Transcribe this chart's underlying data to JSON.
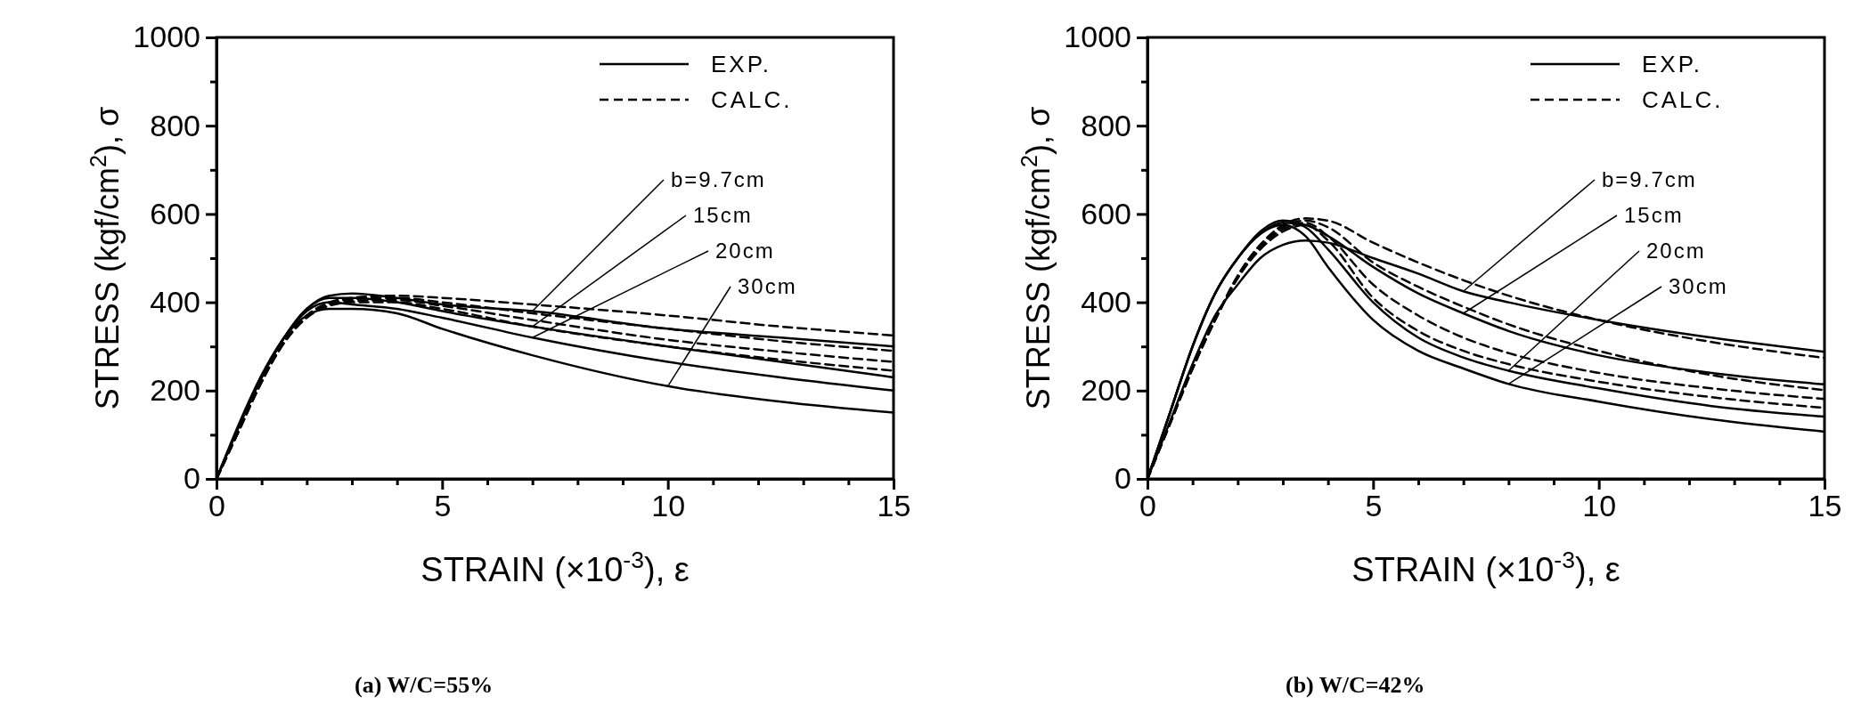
{
  "chart_data": [
    {
      "type": "line",
      "title": "(a)  W/C=55%",
      "xlabel": "STRAIN (×10$^{-3}$), ε",
      "ylabel": "STRESS (kgf/cm$^{2}$), σ",
      "xlim": [
        0,
        15
      ],
      "ylim": [
        0,
        1000
      ],
      "xticks": [
        0,
        {
          "value": 1,
          "label": null
        },
        {
          "value": 2,
          "label": null
        },
        {
          "value": 3,
          "label": null
        },
        {
          "value": 4,
          "label": null
        },
        5,
        {
          "value": 6,
          "label": null
        },
        {
          "value": 7,
          "label": null
        },
        {
          "value": 8,
          "label": null
        },
        {
          "value": 9,
          "label": null
        },
        10,
        {
          "value": 11,
          "label": null
        },
        {
          "value": 12,
          "label": null
        },
        {
          "value": 13,
          "label": null
        },
        {
          "value": 14,
          "label": null
        },
        15
      ],
      "yticks": [
        0,
        {
          "value": 100,
          "label": null
        },
        200,
        {
          "value": 300,
          "label": null
        },
        400,
        {
          "value": 500,
          "label": null
        },
        600,
        {
          "value": 700,
          "label": null
        },
        800,
        {
          "value": 900,
          "label": null
        },
        1000
      ],
      "legend": "top right",
      "series": [
        {
          "name": "EXP.",
          "color": "#000000",
          "line_style": "solid",
          "x": [
            0,
            0.5,
            1,
            1.5,
            2,
            2.5,
            3,
            4,
            5,
            7,
            10,
            12.5,
            15
          ],
          "values": [
            0,
            120,
            230,
            320,
            385,
            415,
            420,
            410,
            395,
            380,
            340,
            320,
            300
          ]
        },
        {
          "color": "#000000",
          "line_style": "solid",
          "x": [
            0,
            0.5,
            1,
            1.5,
            2,
            2.5,
            3,
            4,
            5,
            7,
            10,
            12.5,
            15
          ],
          "values": [
            0,
            120,
            230,
            320,
            385,
            410,
            410,
            400,
            380,
            345,
            300,
            265,
            230
          ]
        },
        {
          "color": "#000000",
          "line_style": "solid",
          "x": [
            0,
            0.5,
            1,
            1.5,
            2,
            2.5,
            3,
            4,
            5,
            7,
            10,
            12.5,
            15
          ],
          "values": [
            0,
            120,
            230,
            320,
            380,
            400,
            395,
            385,
            365,
            320,
            265,
            230,
            200
          ]
        },
        {
          "color": "#000000",
          "line_style": "solid",
          "x": [
            0,
            0.5,
            1,
            1.5,
            2,
            2.5,
            3,
            4,
            5,
            7,
            10,
            12.5,
            15
          ],
          "values": [
            0,
            125,
            235,
            320,
            370,
            385,
            385,
            375,
            340,
            280,
            210,
            175,
            150
          ]
        },
        {
          "name": "CALC.",
          "color": "#000000",
          "line_style": "dashed",
          "x": [
            0,
            0.5,
            1,
            1.5,
            2,
            2.5,
            3,
            4,
            5,
            7,
            10,
            12.5,
            15
          ],
          "values": [
            0,
            110,
            220,
            310,
            370,
            400,
            410,
            415,
            410,
            395,
            370,
            345,
            325
          ]
        },
        {
          "color": "#000000",
          "line_style": "dashed",
          "x": [
            0,
            0.5,
            1,
            1.5,
            2,
            2.5,
            3,
            4,
            5,
            7,
            10,
            12.5,
            15
          ],
          "values": [
            0,
            110,
            220,
            310,
            370,
            398,
            407,
            410,
            400,
            375,
            340,
            312,
            290
          ]
        },
        {
          "color": "#000000",
          "line_style": "dashed",
          "x": [
            0,
            0.5,
            1,
            1.5,
            2,
            2.5,
            3,
            4,
            5,
            7,
            10,
            12.5,
            15
          ],
          "values": [
            0,
            110,
            220,
            310,
            368,
            395,
            403,
            405,
            392,
            360,
            315,
            288,
            265
          ]
        },
        {
          "color": "#000000",
          "line_style": "dashed",
          "x": [
            0,
            0.5,
            1,
            1.5,
            2,
            2.5,
            3,
            4,
            5,
            7,
            10,
            12.5,
            15
          ],
          "values": [
            0,
            110,
            220,
            308,
            365,
            392,
            400,
            400,
            385,
            345,
            300,
            270,
            245
          ]
        }
      ],
      "annotations": [
        {
          "text": "b=9.7cm",
          "x": 7,
          "y": 380
        },
        {
          "text": "15cm",
          "x": 7,
          "y": 345
        },
        {
          "text": "20cm",
          "x": 7,
          "y": 320
        },
        {
          "text": "30cm",
          "x": 10,
          "y": 210
        }
      ]
    },
    {
      "type": "line",
      "title": "(b)  W/C=42%",
      "xlabel": "STRAIN (×10$^{-3}$), ε",
      "ylabel": "STRESS (kgf/cm$^{2}$), σ",
      "xlim": [
        0,
        15
      ],
      "ylim": [
        0,
        1000
      ],
      "xticks": [
        0,
        {
          "value": 1,
          "label": null
        },
        {
          "value": 2,
          "label": null
        },
        {
          "value": 3,
          "label": null
        },
        {
          "value": 4,
          "label": null
        },
        5,
        {
          "value": 6,
          "label": null
        },
        {
          "value": 7,
          "label": null
        },
        {
          "value": 8,
          "label": null
        },
        {
          "value": 9,
          "label": null
        },
        10,
        {
          "value": 11,
          "label": null
        },
        {
          "value": 12,
          "label": null
        },
        {
          "value": 13,
          "label": null
        },
        {
          "value": 14,
          "label": null
        },
        15
      ],
      "yticks": [
        0,
        {
          "value": 100,
          "label": null
        },
        200,
        {
          "value": 300,
          "label": null
        },
        400,
        {
          "value": 500,
          "label": null
        },
        600,
        {
          "value": 700,
          "label": null
        },
        800,
        {
          "value": 900,
          "label": null
        },
        1000
      ],
      "legend": "top right",
      "series": [
        {
          "name": "EXP.",
          "color": "#000000",
          "line_style": "solid",
          "x": [
            0,
            0.5,
            1,
            1.5,
            2,
            2.5,
            3,
            3.5,
            4,
            5,
            6,
            7,
            8,
            10,
            12.5,
            15
          ],
          "values": [
            0,
            130,
            260,
            370,
            440,
            500,
            530,
            540,
            535,
            500,
            465,
            425,
            400,
            360,
            320,
            288
          ]
        },
        {
          "color": "#000000",
          "line_style": "solid",
          "x": [
            0,
            0.5,
            1,
            1.5,
            2,
            2.5,
            3,
            3.5,
            4,
            5,
            6,
            7,
            8,
            10,
            12.5,
            15
          ],
          "values": [
            0,
            150,
            300,
            420,
            500,
            555,
            580,
            575,
            550,
            480,
            420,
            375,
            335,
            280,
            240,
            214
          ]
        },
        {
          "color": "#000000",
          "line_style": "solid",
          "x": [
            0,
            0.5,
            1,
            1.5,
            2,
            2.5,
            3,
            3.5,
            4,
            5,
            6,
            7,
            8,
            10,
            12.5,
            15
          ],
          "values": [
            0,
            150,
            300,
            420,
            500,
            560,
            585,
            570,
            520,
            400,
            320,
            275,
            245,
            205,
            165,
            141
          ]
        },
        {
          "color": "#000000",
          "line_style": "solid",
          "x": [
            0,
            0.5,
            1,
            1.5,
            2,
            2.5,
            3,
            3.5,
            4,
            5,
            6,
            7,
            8,
            10,
            12.5,
            15
          ],
          "values": [
            0,
            150,
            300,
            420,
            500,
            555,
            575,
            550,
            480,
            360,
            290,
            250,
            215,
            175,
            135,
            107
          ]
        },
        {
          "name": "CALC.",
          "color": "#000000",
          "line_style": "dashed",
          "x": [
            0,
            0.5,
            1,
            1.5,
            2,
            2.5,
            3,
            3.5,
            4,
            5,
            6,
            7,
            8,
            10,
            12.5,
            15
          ],
          "values": [
            0,
            125,
            250,
            360,
            460,
            530,
            575,
            590,
            585,
            535,
            490,
            450,
            415,
            360,
            310,
            274
          ]
        },
        {
          "color": "#000000",
          "line_style": "dashed",
          "x": [
            0,
            0.5,
            1,
            1.5,
            2,
            2.5,
            3,
            3.5,
            4,
            5,
            6,
            7,
            8,
            10,
            12.5,
            15
          ],
          "values": [
            0,
            125,
            250,
            360,
            460,
            530,
            570,
            585,
            570,
            490,
            435,
            390,
            350,
            290,
            235,
            201
          ]
        },
        {
          "color": "#000000",
          "line_style": "dashed",
          "x": [
            0,
            0.5,
            1,
            1.5,
            2,
            2.5,
            3,
            3.5,
            4,
            5,
            6,
            7,
            8,
            10,
            12.5,
            15
          ],
          "values": [
            0,
            125,
            250,
            360,
            455,
            525,
            565,
            580,
            550,
            440,
            370,
            320,
            285,
            240,
            205,
            181
          ]
        },
        {
          "color": "#000000",
          "line_style": "dashed",
          "x": [
            0,
            0.5,
            1,
            1.5,
            2,
            2.5,
            3,
            3.5,
            4,
            5,
            6,
            7,
            8,
            10,
            12.5,
            15
          ],
          "values": [
            0,
            125,
            250,
            360,
            455,
            520,
            560,
            575,
            540,
            410,
            335,
            290,
            260,
            220,
            185,
            161
          ]
        }
      ],
      "annotations": [
        {
          "text": "b=9.7cm",
          "x": 7,
          "y": 425
        },
        {
          "text": "15cm",
          "x": 7,
          "y": 375
        },
        {
          "text": "20cm",
          "x": 8,
          "y": 245
        },
        {
          "text": "30cm",
          "x": 8,
          "y": 215
        }
      ]
    }
  ]
}
